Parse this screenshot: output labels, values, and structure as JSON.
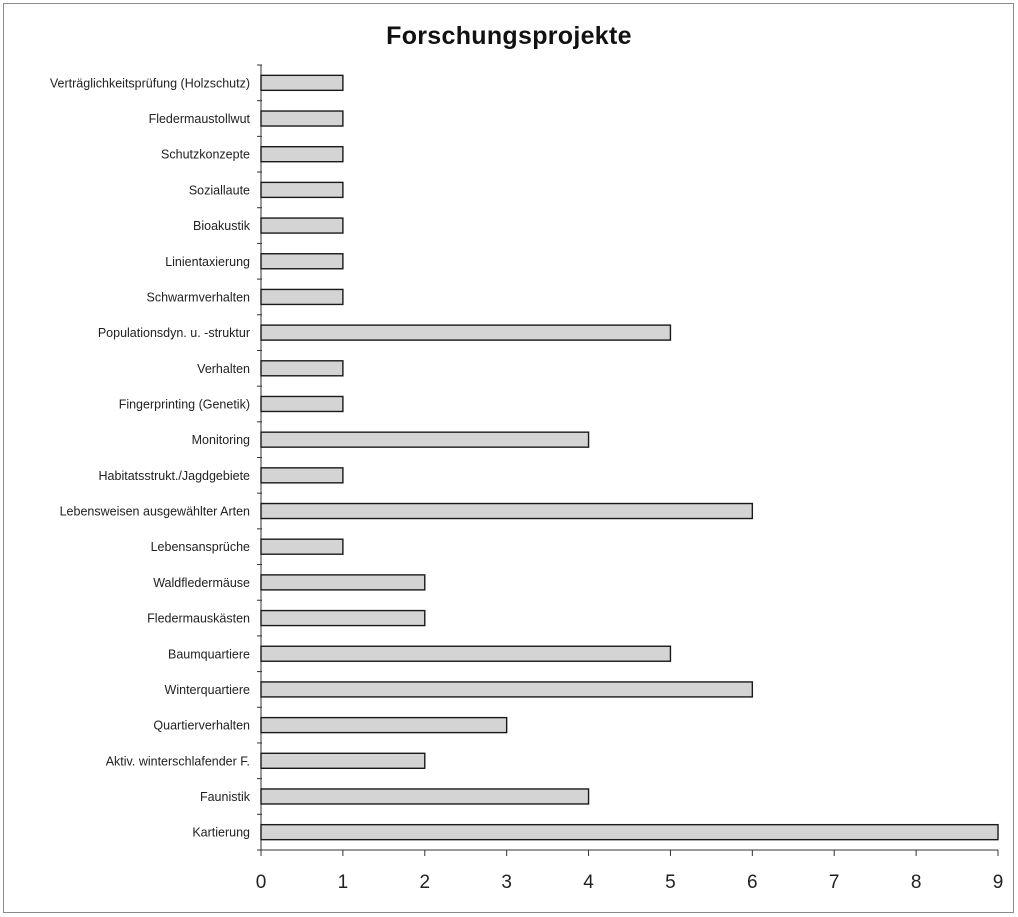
{
  "chart_data": {
    "type": "bar",
    "orientation": "horizontal",
    "title": "Forschungsprojekte",
    "xlabel": "",
    "ylabel": "",
    "xlim": [
      0,
      9
    ],
    "x_ticks": [
      "0",
      "1",
      "2",
      "3",
      "4",
      "5",
      "6",
      "7",
      "8",
      "9"
    ],
    "categories": [
      "Verträglichkeitsprüfung (Holzschutz)",
      "Fledermaustollwut",
      "Schutzkonzepte",
      "Soziallaute",
      "Bioakustik",
      "Linientaxierung",
      "Schwarmverhalten",
      "Populationsdyn. u. -struktur",
      "Verhalten",
      "Fingerprinting (Genetik)",
      "Monitoring",
      "Habitatsstrukt./Jagdgebiete",
      "Lebensweisen ausgewählter Arten",
      "Lebensansprüche",
      "Waldfledermäuse",
      "Fledermauskästen",
      "Baumquartiere",
      "Winterquartiere",
      "Quartierverhalten",
      "Aktiv. winterschlafender F.",
      "Faunistik",
      "Kartierung"
    ],
    "values": [
      1,
      1,
      1,
      1,
      1,
      1,
      1,
      5,
      1,
      1,
      4,
      1,
      6,
      1,
      2,
      2,
      5,
      6,
      3,
      2,
      4,
      9
    ],
    "grid": false,
    "legend": "none",
    "colors": {
      "bar_fill": "#d4d4d4",
      "bar_stroke": "#1a1a1a",
      "axis": "#333333"
    }
  }
}
